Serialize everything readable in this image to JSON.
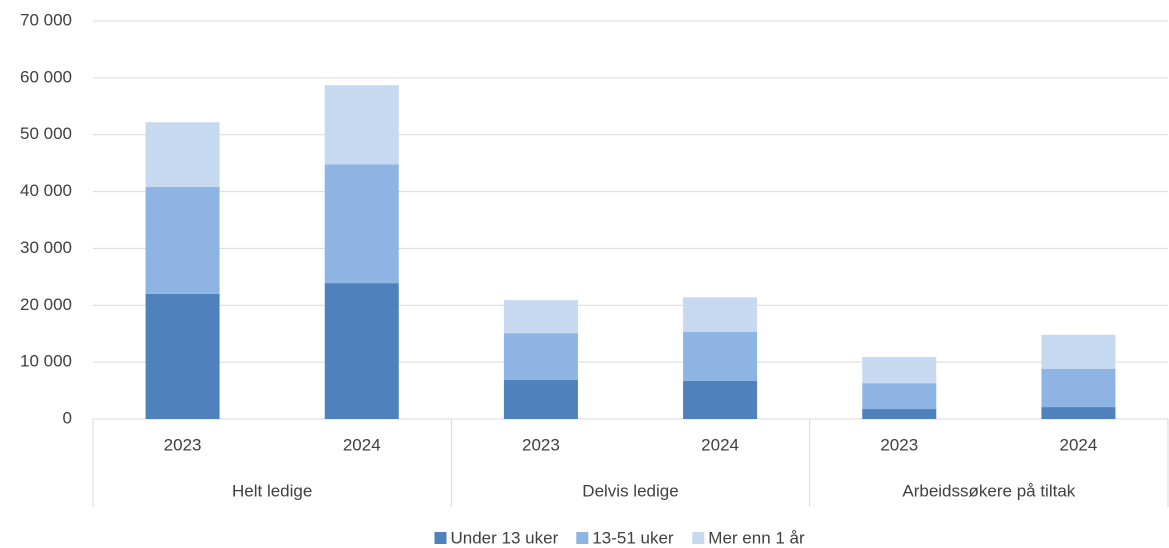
{
  "chart_data": {
    "type": "stacked_bar",
    "categories": [
      "2023",
      "2024",
      "2023",
      "2024",
      "2023",
      "2024"
    ],
    "groups": [
      "Helt ledige",
      "Delvis ledige",
      "Arbeidssøkere på tiltak"
    ],
    "series": [
      {
        "name": "Under 13 uker",
        "color": "#4f81bd",
        "values": [
          22000,
          23900,
          6900,
          6700,
          1750,
          2100
        ]
      },
      {
        "name": "13-51 uker",
        "color": "#8eb4e3",
        "values": [
          18800,
          20900,
          8200,
          8600,
          4550,
          6700
        ]
      },
      {
        "name": "Mer enn 1 år",
        "color": "#c6d9f1",
        "values": [
          11400,
          13900,
          5800,
          6100,
          4600,
          6000
        ]
      }
    ],
    "ylim": [
      0,
      70000
    ],
    "yticks": [
      0,
      {
        "value": 10000,
        "label": "10 000"
      },
      {
        "value": 20000,
        "label": "20 000"
      },
      {
        "value": 30000,
        "label": "30 000"
      },
      {
        "value": 40000,
        "label": "40 000"
      },
      {
        "value": 50000,
        "label": "50 000"
      },
      {
        "value": 60000,
        "label": "60 000"
      },
      {
        "value": 70000,
        "label": "70 000"
      }
    ],
    "grid": true,
    "legend": "bottom"
  }
}
